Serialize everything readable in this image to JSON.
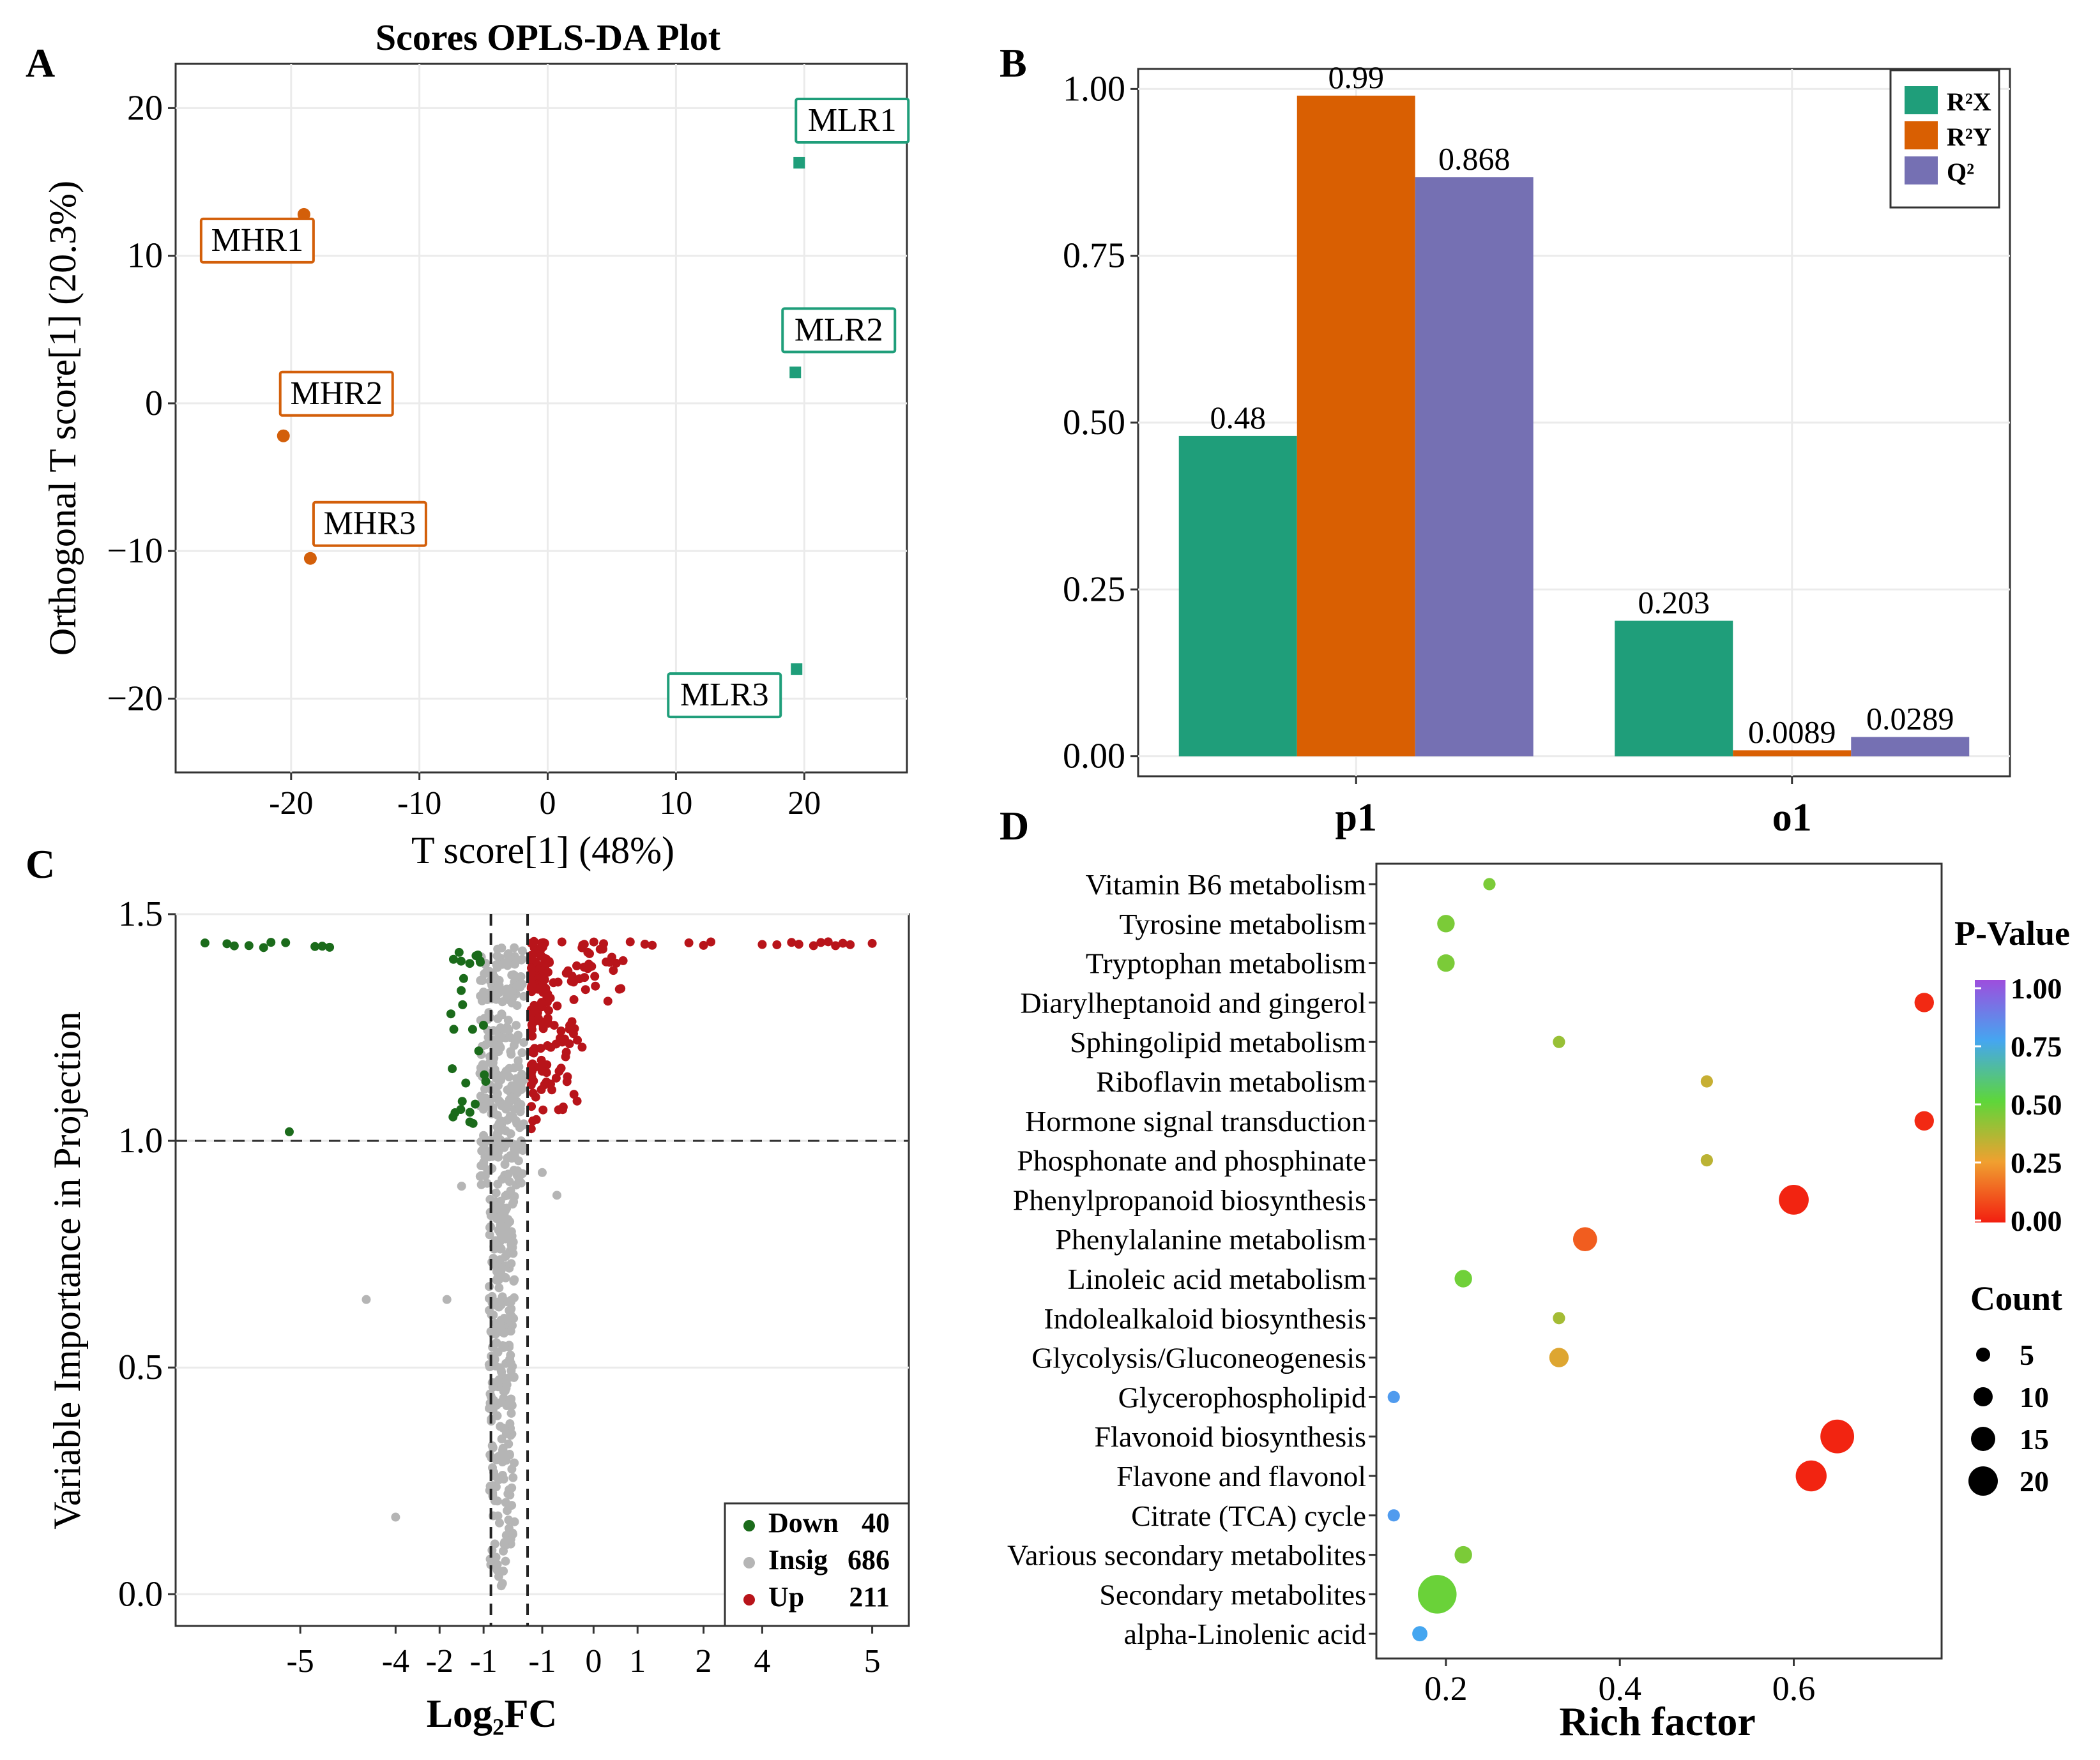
{
  "panels": {
    "a": "A",
    "b": "B",
    "c": "C",
    "d": "D"
  },
  "chart_data": [
    {
      "type": "scatter",
      "title": "Scores OPLS-DA Plot",
      "xlabel": "T score[1] (48%)",
      "ylabel": "Orthogonal T score[1] (20.3%)",
      "xlim": [
        -29,
        28
      ],
      "ylim": [
        -25,
        23
      ],
      "xticks": [
        -20,
        -10,
        0,
        10,
        20
      ],
      "xtick_labels": [
        "-20",
        "-10",
        "0",
        "10",
        "20"
      ],
      "yticks": [
        20,
        10,
        0,
        -10,
        -20
      ],
      "ytick_labels": [
        "20",
        "10",
        "0",
        "−10",
        "−20"
      ],
      "grid": true,
      "colors": {
        "MHR": "#d35f0a",
        "MLR": "#1f9e7a"
      },
      "points": [
        {
          "label": "MLR1",
          "group": "MLR",
          "x": 19.6,
          "y": 16.3
        },
        {
          "label": "MLR2",
          "group": "MLR",
          "x": 19.3,
          "y": 2.1
        },
        {
          "label": "MLR3",
          "group": "MLR",
          "x": 19.4,
          "y": -18.0
        },
        {
          "label": "MHR1",
          "group": "MHR",
          "x": -19.0,
          "y": 12.8
        },
        {
          "label": "MHR2",
          "group": "MHR",
          "x": -20.6,
          "y": -2.2
        },
        {
          "label": "MHR3",
          "group": "MHR",
          "x": -18.5,
          "y": -10.5
        }
      ]
    },
    {
      "type": "bar",
      "categories": [
        "p1",
        "o1"
      ],
      "series": [
        {
          "name": "R²X",
          "color": "#1f9e7a",
          "values": [
            0.48,
            0.203
          ],
          "labels": [
            "0.48",
            "0.203"
          ]
        },
        {
          "name": "R²Y",
          "color": "#d95f02",
          "values": [
            0.99,
            0.0089
          ],
          "labels": [
            "0.99",
            "0.0089"
          ]
        },
        {
          "name": "Q²",
          "color": "#7570b3",
          "values": [
            0.868,
            0.0289
          ],
          "labels": [
            "0.868",
            "0.0289"
          ]
        }
      ],
      "ylim": [
        -0.03,
        1.03
      ],
      "yticks": [
        0,
        0.25,
        0.5,
        0.75,
        1.0
      ],
      "ytick_labels": [
        "0.00",
        "0.25",
        "0.50",
        "0.75",
        "1.00"
      ],
      "legend": "top-right",
      "grid": true
    },
    {
      "type": "scatter",
      "subtype": "volcano",
      "xlabel": "Log₂FC",
      "ylabel": "Variable Importance in Projection",
      "ylim": [
        -0.07,
        1.5
      ],
      "yticks": [
        0.0,
        0.5,
        1.0,
        1.5
      ],
      "ytick_labels": [
        "0.0",
        "0.5",
        "1.0",
        "1.5"
      ],
      "xtick_labels": [
        "-5",
        "-4",
        "-2",
        "-1",
        "-1",
        "0",
        "1",
        "2",
        "4",
        "5"
      ],
      "axis_tick_positions": [
        0.17,
        0.3,
        0.36,
        0.42,
        0.5,
        0.57,
        0.63,
        0.72,
        0.8,
        0.95
      ],
      "vip_threshold": 1.0,
      "fc_threshold_positions": [
        0.43,
        0.48
      ],
      "legend": [
        {
          "name": "Down",
          "count": "40",
          "color": "#1b6b1b"
        },
        {
          "name": "Insig",
          "count": "686",
          "color": "#b5b5b5"
        },
        {
          "name": "Up",
          "count": "211",
          "color": "#b8141a"
        }
      ],
      "legend_position": "bottom-right",
      "grid": true
    },
    {
      "type": "scatter",
      "subtype": "bubble",
      "xlabel": "Rich factor",
      "xlim": [
        0.12,
        0.77
      ],
      "xticks": [
        0.2,
        0.4,
        0.6
      ],
      "xtick_labels": [
        "0.2",
        "0.4",
        "0.6"
      ],
      "color_title": "P-Value",
      "color_ticks": [
        "1.00",
        "0.75",
        "0.50",
        "0.25",
        "0.00"
      ],
      "size_title": "Count",
      "size_ticks": [
        "5",
        "10",
        "15",
        "20"
      ],
      "pathways": [
        {
          "name": "Vitamin B6 metabolism",
          "rich": 0.25,
          "p": 0.45,
          "count": 1
        },
        {
          "name": "Tyrosine metabolism",
          "rich": 0.2,
          "p": 0.45,
          "count": 3
        },
        {
          "name": "Tryptophan metabolism",
          "rich": 0.2,
          "p": 0.45,
          "count": 3
        },
        {
          "name": "Diarylheptanoid and gingerol",
          "rich": 0.75,
          "p": 0.02,
          "count": 4
        },
        {
          "name": "Sphingolipid metabolism",
          "rich": 0.33,
          "p": 0.4,
          "count": 1
        },
        {
          "name": "Riboflavin metabolism",
          "rich": 0.5,
          "p": 0.32,
          "count": 1
        },
        {
          "name": "Hormone signal transduction",
          "rich": 0.75,
          "p": 0.02,
          "count": 4
        },
        {
          "name": "Phosphonate and phosphinate",
          "rich": 0.5,
          "p": 0.34,
          "count": 1
        },
        {
          "name": "Phenylpropanoid biosynthesis",
          "rich": 0.6,
          "p": 0.01,
          "count": 12
        },
        {
          "name": "Phenylalanine metabolism",
          "rich": 0.36,
          "p": 0.12,
          "count": 7
        },
        {
          "name": "Linoleic acid metabolism",
          "rich": 0.22,
          "p": 0.47,
          "count": 3
        },
        {
          "name": "Indolealkaloid biosynthesis",
          "rich": 0.33,
          "p": 0.38,
          "count": 1
        },
        {
          "name": "Glycolysis/Gluconeogenesis",
          "rich": 0.33,
          "p": 0.28,
          "count": 4
        },
        {
          "name": "Glycerophospholipid",
          "rich": 0.14,
          "p": 0.78,
          "count": 1
        },
        {
          "name": "Flavonoid biosynthesis",
          "rich": 0.65,
          "p": 0.01,
          "count": 16
        },
        {
          "name": "Flavone and flavonol",
          "rich": 0.62,
          "p": 0.01,
          "count": 13
        },
        {
          "name": "Citrate (TCA) cycle",
          "rich": 0.14,
          "p": 0.78,
          "count": 1
        },
        {
          "name": "Various secondary metabolites",
          "rich": 0.22,
          "p": 0.45,
          "count": 3
        },
        {
          "name": "Secondary metabolites",
          "rich": 0.19,
          "p": 0.48,
          "count": 22
        },
        {
          "name": "alpha-Linolenic acid",
          "rich": 0.17,
          "p": 0.75,
          "count": 2
        }
      ]
    }
  ]
}
